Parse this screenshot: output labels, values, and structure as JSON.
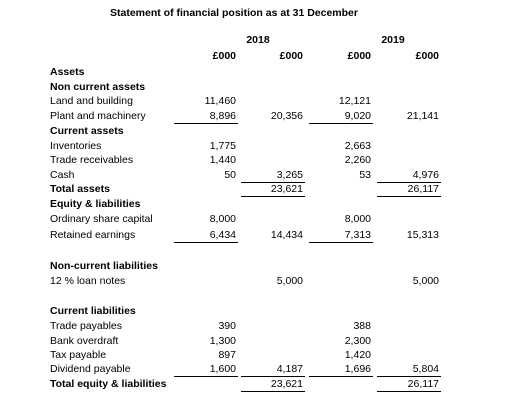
{
  "title": "Statement of financial position as at 31 December",
  "years": [
    "2018",
    "2019"
  ],
  "units": [
    "£000",
    "£000",
    "£000",
    "£000"
  ],
  "rows": [
    {
      "label": "Assets",
      "bold": true,
      "cells": [
        null,
        null,
        null,
        null
      ]
    },
    {
      "label": "Non current assets",
      "bold": true,
      "cells": [
        null,
        null,
        null,
        null
      ]
    },
    {
      "label": "Land and building",
      "cells": [
        "11,460",
        null,
        "12,121",
        null
      ]
    },
    {
      "label": "Plant and machinery",
      "cells": [
        "8,896",
        "20,356",
        "9,020",
        "21,141"
      ]
    },
    {
      "label": "Current assets",
      "bold": true,
      "cells": [
        null,
        null,
        null,
        null
      ]
    },
    {
      "label": "Inventories",
      "cells": [
        "1,775",
        null,
        "2,663",
        null
      ]
    },
    {
      "label": "Trade receivables",
      "cells": [
        "1,440",
        null,
        "2,260",
        null
      ]
    },
    {
      "label": "Cash",
      "cells": [
        "50",
        "3,265",
        "53",
        "4,976"
      ]
    },
    {
      "label": "Total assets",
      "bold": true,
      "cells": [
        null,
        "23,621",
        null,
        "26,117"
      ]
    },
    {
      "label": "Equity & liabilities",
      "bold": true,
      "cells": [
        null,
        null,
        null,
        null
      ]
    },
    {
      "label": "Ordinary share capital",
      "cells": [
        "8,000",
        null,
        "8,000",
        null
      ]
    },
    {
      "label": "Retained earnings",
      "cells": [
        "6,434",
        "14,434",
        "7,313",
        "15,313"
      ]
    },
    {
      "label": "Non-current liabilities",
      "bold": true,
      "cells": [
        null,
        null,
        null,
        null
      ]
    },
    {
      "label": "12 % loan notes",
      "cells": [
        null,
        "5,000",
        null,
        "5,000"
      ]
    },
    {
      "label": "Current liabilities",
      "bold": true,
      "cells": [
        null,
        null,
        null,
        null
      ]
    },
    {
      "label": "Trade payables",
      "cells": [
        "390",
        null,
        "388",
        null
      ]
    },
    {
      "label": "Bank overdraft",
      "cells": [
        "1,300",
        null,
        "2,300",
        null
      ]
    },
    {
      "label": "Tax payable",
      "cells": [
        "897",
        null,
        "1,420",
        null
      ]
    },
    {
      "label": "Dividend payable",
      "cells": [
        "1,600",
        "4,187",
        "1,696",
        "5,804"
      ]
    },
    {
      "label": "Total equity & liabilities",
      "bold": true,
      "cells": [
        null,
        "23,621",
        null,
        "26,117"
      ]
    }
  ]
}
